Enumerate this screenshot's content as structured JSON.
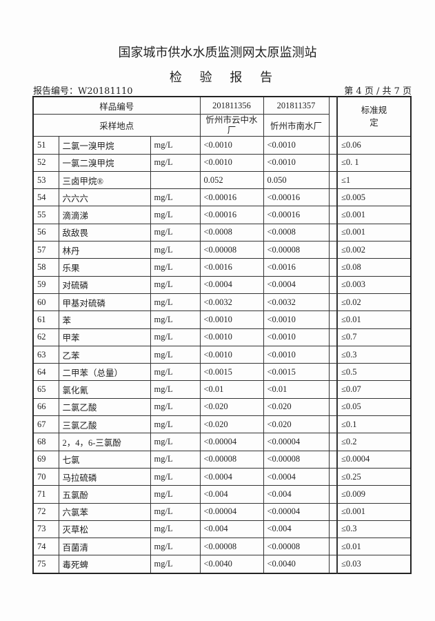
{
  "header": {
    "org": "国家城市供水水质监测网太原监测站",
    "doc_title": "检 验 报 告",
    "report_no": "报告编号：W20181110",
    "page": "第 4 页 / 共 7 页"
  },
  "table": {
    "sample_no_label": "样品编号",
    "sample_site_label": "采样地点",
    "standard_label": "标准规定",
    "samples": [
      {
        "id": "201811356",
        "site": "忻州市云中水厂"
      },
      {
        "id": "201811357",
        "site": "忻州市南水厂"
      }
    ],
    "rows": [
      [
        "51",
        "二氯一溴甲烷",
        "mg/L",
        "<0.0010",
        "<0.0010",
        "≤0.06"
      ],
      [
        "52",
        "一氯二溴甲烷",
        "mg/L",
        "<0.0010",
        "<0.0010",
        "≤0. 1"
      ],
      [
        "53",
        "三卤甲烷®",
        "",
        "0.052",
        "0.050",
        "≤1"
      ],
      [
        "54",
        "六六六",
        "mg/L",
        "<0.00016",
        "<0.00016",
        "≤0.005"
      ],
      [
        "55",
        "滴滴涕",
        "mg/L",
        "<0.00016",
        "<0.00016",
        "≤0.001"
      ],
      [
        "56",
        "敌敌畏",
        "mg/L",
        "<0.0008",
        "<0.0008",
        "≤0.001"
      ],
      [
        "57",
        "林丹",
        "mg/L",
        "<0.00008",
        "<0.00008",
        "≤0.002"
      ],
      [
        "58",
        "乐果",
        "mg/L",
        "<0.0016",
        "<0.0016",
        "≤0.08"
      ],
      [
        "59",
        "对硫磷",
        "mg/L",
        "<0.0004",
        "<0.0004",
        "≤0.003"
      ],
      [
        "60",
        "甲基对硫磷",
        "mg/L",
        "<0.0032",
        "<0.0032",
        "≤0.02"
      ],
      [
        "61",
        "苯",
        "mg/L",
        "<0.0010",
        "<0.0010",
        "≤0.01"
      ],
      [
        "62",
        "甲苯",
        "mg/L",
        "<0.0010",
        "<0.0010",
        "≤0.7"
      ],
      [
        "63",
        "乙苯",
        "mg/L",
        "<0.0010",
        "<0.0010",
        "≤0.3"
      ],
      [
        "64",
        "二甲苯（总量）",
        "mg/L",
        "<0.0015",
        "<0.0015",
        "≤0.5"
      ],
      [
        "65",
        "氯化氰",
        "mg/L",
        "<0.01",
        "<0.01",
        "≤0.07"
      ],
      [
        "66",
        "二氯乙酸",
        "mg/L",
        "<0.020",
        "<0.020",
        "≤0.05"
      ],
      [
        "67",
        "三氯乙酸",
        "mg/L",
        "<0.020",
        "<0.020",
        "≤0.1"
      ],
      [
        "68",
        "2，4，6-三氯酚",
        "mg/L",
        "<0.00004",
        "<0.00004",
        "≤0.2"
      ],
      [
        "69",
        "七氯",
        "mg/L",
        "<0.00008",
        "<0.00008",
        "≤0.0004"
      ],
      [
        "70",
        "马拉硫磷",
        "mg/L",
        "<0.0004",
        "<0.0004",
        "≤0.25"
      ],
      [
        "71",
        "五氯酚",
        "mg/L",
        "<0.004",
        "<0.004",
        "≤0.009"
      ],
      [
        "72",
        "六氯苯",
        "mg/L",
        "<0.00004",
        "<0.00004",
        "≤0.001"
      ],
      [
        "73",
        "灭草松",
        "mg/L",
        "<0.004",
        "<0.004",
        "≤0.3"
      ],
      [
        "74",
        "百菌清",
        "mg/L",
        "<0.00008",
        "<0.00008",
        "≤0.01"
      ],
      [
        "75",
        "毒死蜱",
        "mg/L",
        "<0.0040",
        "<0.0040",
        "≤0.03"
      ]
    ]
  }
}
